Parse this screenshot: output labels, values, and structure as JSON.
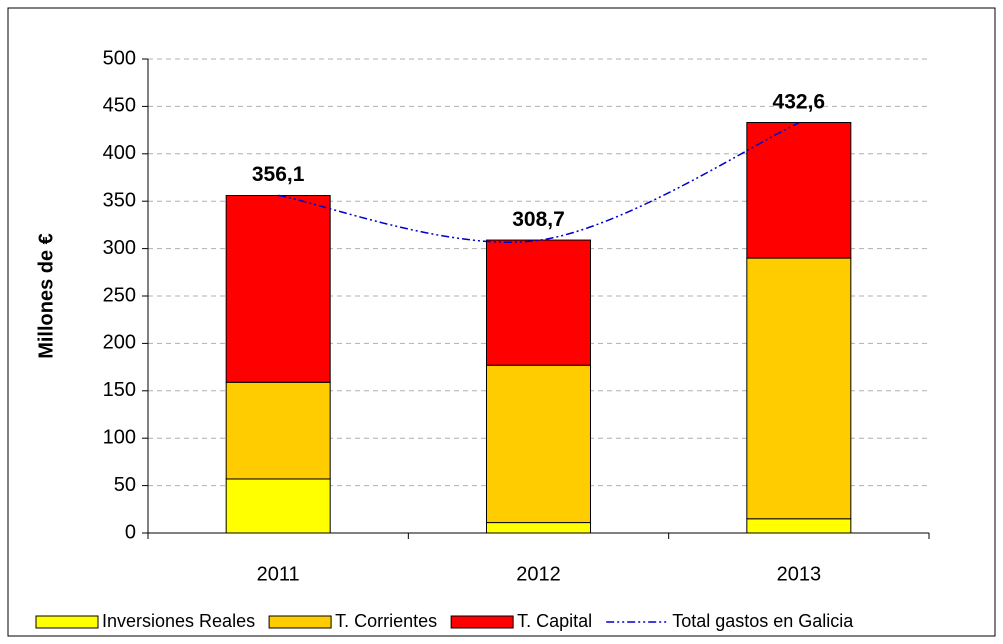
{
  "chart_data": {
    "type": "bar",
    "stacked": true,
    "y_label": "Millones de €",
    "categories": [
      "2011",
      "2012",
      "2013"
    ],
    "series": [
      {
        "name": "Inversiones Reales",
        "color": "#ffff00",
        "values": [
          57,
          11,
          15
        ]
      },
      {
        "name": "T. Corrientes",
        "color": "#ffcc00",
        "values": [
          102,
          166,
          275
        ]
      },
      {
        "name": "T. Capital",
        "color": "#ff0000",
        "values": [
          197,
          132,
          143
        ]
      },
      {
        "name": "Total gastos en Galicia",
        "type": "line",
        "color": "#0000cc",
        "values": [
          356.1,
          308.7,
          432.6
        ],
        "value_labels": [
          "356,1",
          "308,7",
          "432,6"
        ]
      }
    ],
    "ylim": [
      0,
      500
    ],
    "yticks": [
      0,
      50,
      100,
      150,
      200,
      250,
      300,
      350,
      400,
      450,
      500
    ],
    "grid": true,
    "legend": "bottom"
  }
}
